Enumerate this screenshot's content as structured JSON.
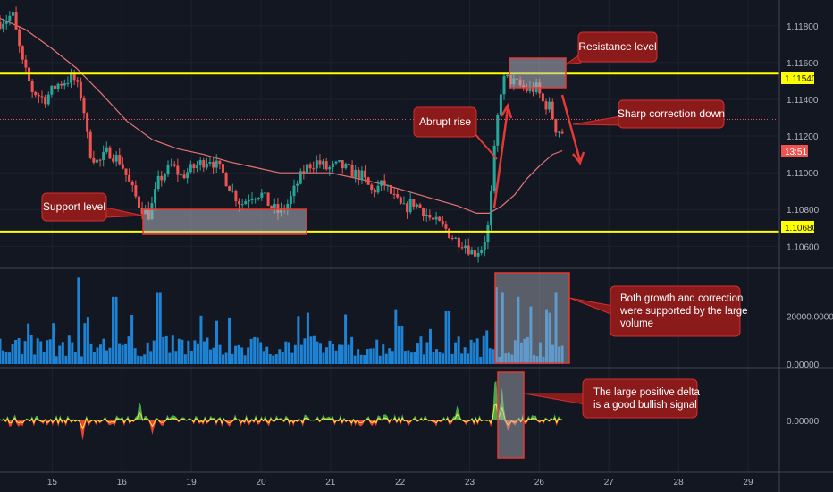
{
  "chart_data": {
    "type": "candlestick",
    "price_axis": {
      "ticks": [
        "1.11800",
        "1.11600",
        "1.11400",
        "1.11200",
        "1.11000",
        "1.10800",
        "1.10600"
      ],
      "tick_values": [
        1.118,
        1.116,
        1.114,
        1.112,
        1.11,
        1.108,
        1.106
      ],
      "range": [
        1.1048,
        1.1194
      ]
    },
    "volume_axis": {
      "ticks": [
        "20000.00000",
        "0.00000"
      ],
      "tick_values": [
        20000,
        0
      ],
      "range": [
        0,
        38000
      ]
    },
    "delta_axis": {
      "ticks": [
        "0.00000"
      ],
      "tick_values": [
        0
      ]
    },
    "x_axis": {
      "ticks": [
        "15",
        "16",
        "19",
        "20",
        "21",
        "22",
        "23",
        "26",
        "27",
        "28",
        "29"
      ],
      "range_days": [
        14.2,
        29.6
      ]
    },
    "price_labels": {
      "resistance": "1.11540",
      "current_time": "13:51",
      "support": "1.10680"
    },
    "levels": [
      {
        "label": "Resistance level",
        "value": 1.1154,
        "color": "#ffff00"
      },
      {
        "label": "Support level",
        "value": 1.1068,
        "color": "#ffff00"
      }
    ],
    "current_price": 1.1129,
    "annotations": {
      "resistance": "Resistance level",
      "support": "Support level",
      "rise": "Abrupt rise",
      "correction": "Sharp correction down",
      "volume_1": "Both growth and correction",
      "volume_2": "were supported by the large",
      "volume_3": "volume",
      "delta_1": "The large positive delta",
      "delta_2": "is a good bullish signal"
    },
    "price_path": [
      [
        14.2,
        1.1182
      ],
      [
        14.4,
        1.1186
      ],
      [
        14.55,
        1.116
      ],
      [
        14.7,
        1.1145
      ],
      [
        14.9,
        1.114
      ],
      [
        15.1,
        1.1148
      ],
      [
        15.35,
        1.1152
      ],
      [
        15.5,
        1.114
      ],
      [
        15.6,
        1.1112
      ],
      [
        15.75,
        1.1105
      ],
      [
        15.9,
        1.1112
      ],
      [
        16.1,
        1.1106
      ],
      [
        16.25,
        1.1093
      ],
      [
        16.4,
        1.1082
      ],
      [
        16.55,
        1.1077
      ],
      [
        16.7,
        1.1096
      ],
      [
        16.9,
        1.1104
      ],
      [
        17.05,
        1.1098
      ],
      [
        17.3,
        1.1104
      ],
      [
        17.5,
        1.1108
      ],
      [
        17.7,
        1.11
      ],
      [
        17.85,
        1.109
      ],
      [
        18.0,
        1.1083
      ],
      [
        18.15,
        1.1088
      ],
      [
        18.3,
        1.1089
      ],
      [
        18.45,
        1.1082
      ],
      [
        18.6,
        1.1078
      ],
      [
        18.75,
        1.1084
      ],
      [
        18.9,
        1.1096
      ],
      [
        19.05,
        1.1104
      ],
      [
        19.2,
        1.1106
      ],
      [
        19.35,
        1.1102
      ],
      [
        19.55,
        1.1104
      ],
      [
        19.75,
        1.11
      ],
      [
        19.9,
        1.1098
      ],
      [
        20.05,
        1.109
      ],
      [
        20.25,
        1.1094
      ],
      [
        20.4,
        1.1086
      ],
      [
        20.55,
        1.108
      ],
      [
        20.7,
        1.1084
      ],
      [
        20.85,
        1.108
      ],
      [
        21.0,
        1.1074
      ],
      [
        21.2,
        1.107
      ],
      [
        21.35,
        1.1064
      ],
      [
        21.5,
        1.1062
      ],
      [
        21.65,
        1.1056
      ],
      [
        21.8,
        1.106
      ],
      [
        21.9,
        1.1073
      ],
      [
        22.0,
        1.112
      ],
      [
        22.1,
        1.115
      ],
      [
        22.2,
        1.1151
      ],
      [
        22.35,
        1.1148
      ],
      [
        22.5,
        1.1145
      ],
      [
        22.65,
        1.1146
      ],
      [
        22.75,
        1.1138
      ],
      [
        22.85,
        1.1136
      ],
      [
        22.95,
        1.1124
      ],
      [
        23.05,
        1.1122
      ]
    ],
    "moving_average": [
      [
        14.2,
        1.1184
      ],
      [
        14.6,
        1.1178
      ],
      [
        15.0,
        1.1168
      ],
      [
        15.4,
        1.1157
      ],
      [
        15.8,
        1.1143
      ],
      [
        16.2,
        1.1128
      ],
      [
        16.6,
        1.1118
      ],
      [
        17.0,
        1.1113
      ],
      [
        17.4,
        1.111
      ],
      [
        17.8,
        1.1106
      ],
      [
        18.2,
        1.1103
      ],
      [
        18.6,
        1.11
      ],
      [
        19.0,
        1.11
      ],
      [
        19.4,
        1.11
      ],
      [
        19.8,
        1.1097
      ],
      [
        20.2,
        1.1094
      ],
      [
        20.6,
        1.109
      ],
      [
        21.0,
        1.1086
      ],
      [
        21.4,
        1.1082
      ],
      [
        21.7,
        1.1078
      ],
      [
        21.9,
        1.1078
      ],
      [
        22.1,
        1.1082
      ],
      [
        22.3,
        1.1088
      ],
      [
        22.5,
        1.1097
      ],
      [
        22.7,
        1.1104
      ],
      [
        22.9,
        1.111
      ],
      [
        23.05,
        1.1112
      ]
    ],
    "volume": {
      "bars": 180,
      "spikes": [
        [
          15.45,
          36000
        ],
        [
          15.6,
          34000
        ],
        [
          16.0,
          28000
        ],
        [
          16.7,
          30000
        ],
        [
          17.6,
          18000
        ],
        [
          18.9,
          20000
        ],
        [
          20.5,
          16000
        ],
        [
          21.25,
          22000
        ],
        [
          21.85,
          14000
        ],
        [
          22.0,
          32000
        ],
        [
          22.1,
          30000
        ],
        [
          22.35,
          28000
        ],
        [
          22.55,
          24000
        ],
        [
          22.95,
          30000
        ]
      ]
    },
    "delta": {
      "spikes": [
        [
          15.5,
          -0.85
        ],
        [
          16.4,
          0.95
        ],
        [
          16.6,
          -0.6
        ],
        [
          21.4,
          0.7
        ],
        [
          22.0,
          2.2
        ],
        [
          22.1,
          1.4
        ],
        [
          22.2,
          -0.5
        ]
      ]
    }
  }
}
